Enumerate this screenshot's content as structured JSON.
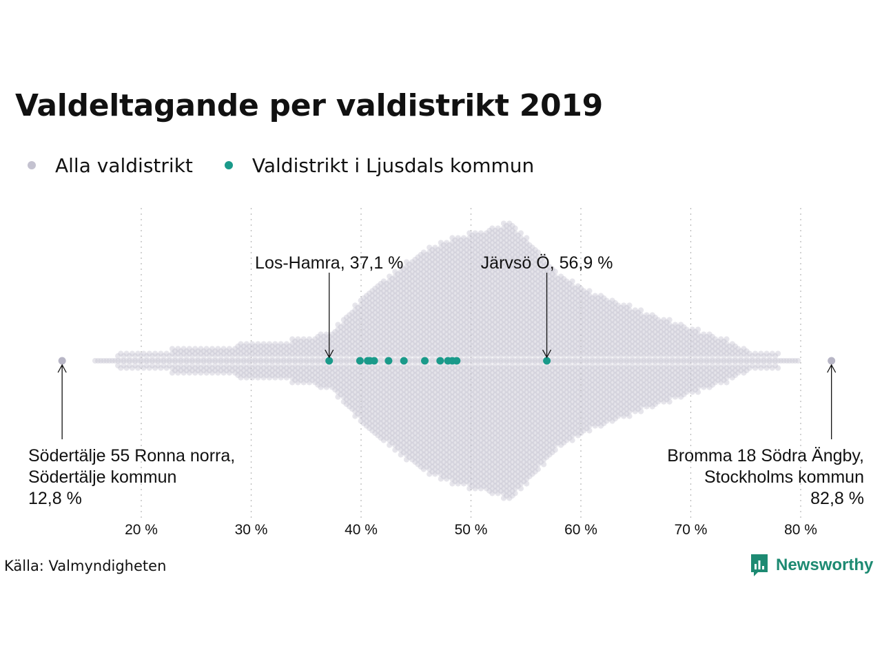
{
  "page": {
    "title": "Valdeltagande per valdistrikt 2019",
    "source": "Källa: Valmyndigheten",
    "brand": "Newsworthy"
  },
  "legend": {
    "all_label": "Alla valdistrikt",
    "local_label": "Valdistrikt i Ljusdals kommun"
  },
  "colors": {
    "all_points": "#c4c2d0",
    "local_points": "#1a9a8a",
    "brand": "#1d8a72"
  },
  "chart_data": {
    "type": "scatter",
    "subtype": "beeswarm",
    "title": "Valdeltagande per valdistrikt 2019",
    "xlabel": "",
    "ylabel": "",
    "xlim": [
      12,
      83.5
    ],
    "x_ticks": [
      20,
      30,
      40,
      50,
      60,
      70,
      80
    ],
    "x_tick_labels": [
      "20 %",
      "30 %",
      "40 %",
      "50 %",
      "60 %",
      "70 %",
      "80 %"
    ],
    "grid": "vertical dotted",
    "legend_position": "top-left",
    "series": [
      {
        "name": "Alla valdistrikt",
        "color": "#c4c2d0",
        "distribution_note": "many districts, peak near 53.5",
        "range": [
          12.8,
          82.8
        ]
      },
      {
        "name": "Valdistrikt i Ljusdals kommun",
        "color": "#1a9a8a",
        "values": [
          37.1,
          39.9,
          40.6,
          40.8,
          41.2,
          42.5,
          43.9,
          45.8,
          47.2,
          47.9,
          48.3,
          48.7,
          56.9
        ]
      }
    ],
    "annotations": [
      {
        "label": "Los-Hamra, 37,1 %",
        "value": 37.1
      },
      {
        "label": "Järvsö Ö, 56,9 %",
        "value": 56.9
      },
      {
        "lines": [
          "Södertälje 55 Ronna norra,",
          "Södertälje kommun",
          "12,8 %"
        ],
        "value": 12.8
      },
      {
        "lines": [
          "Bromma 18 Södra Ängby,",
          "Stockholms kommun",
          "82,8 %"
        ],
        "value": 82.8
      }
    ]
  }
}
